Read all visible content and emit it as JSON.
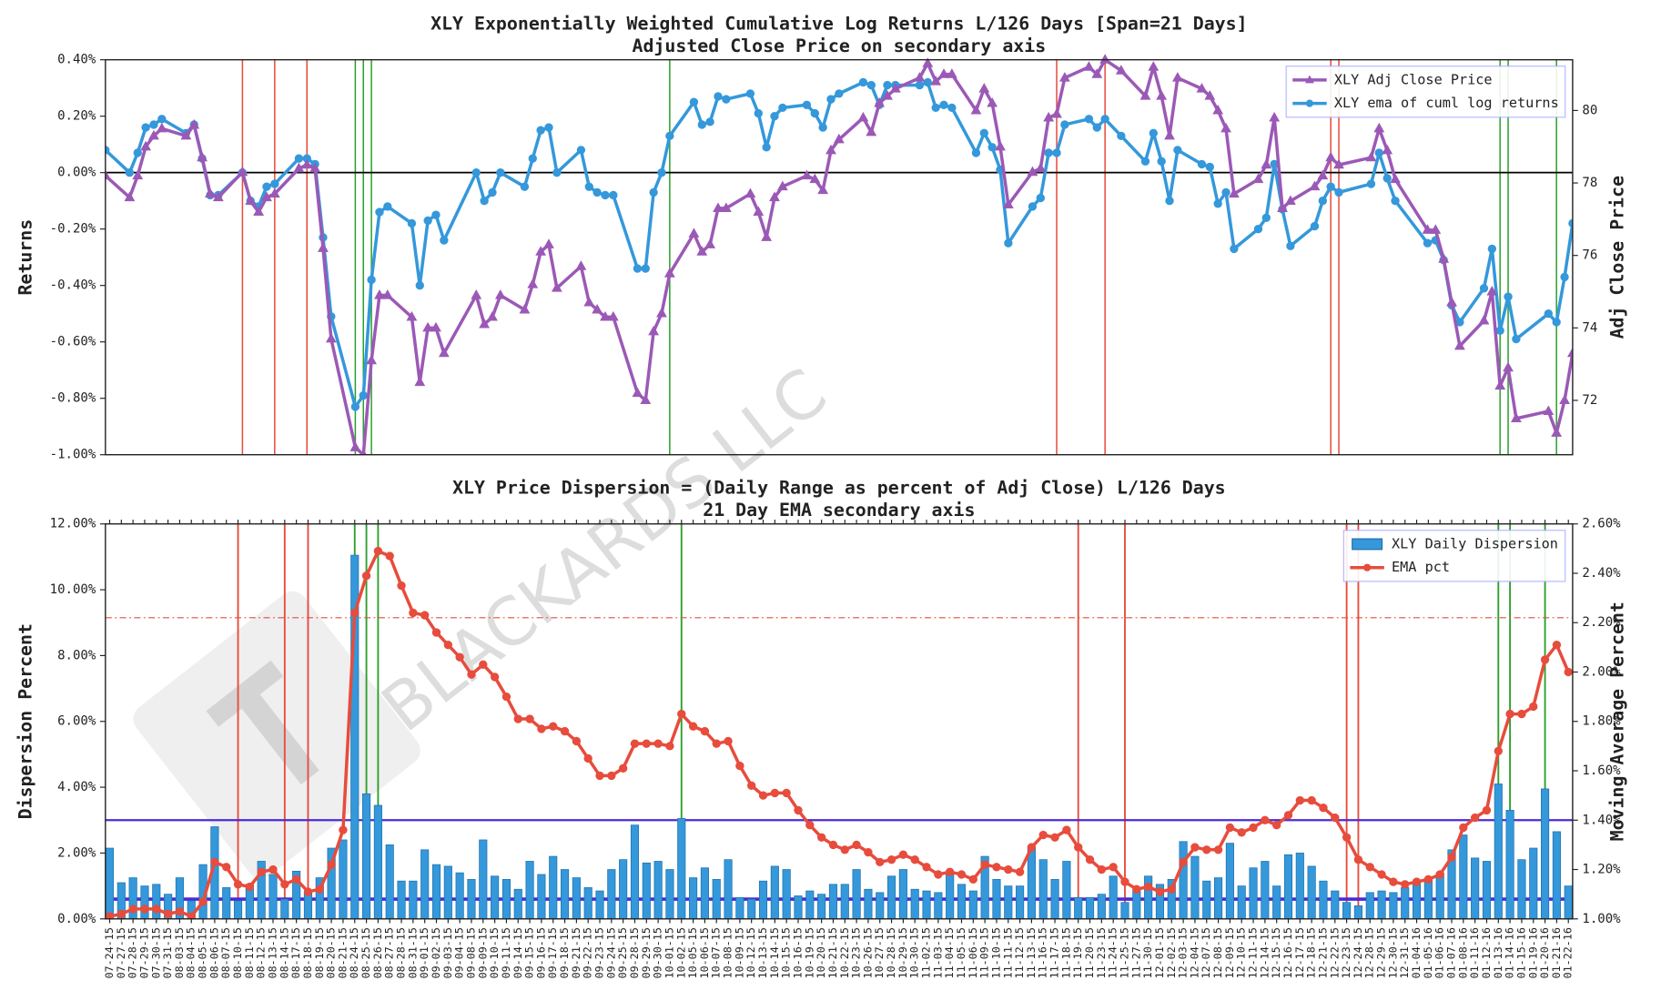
{
  "chart_data": [
    {
      "type": "line",
      "title": "XLY Exponentially Weighted Cumulative Log Returns L/126 Days [Span=21 Days]",
      "subtitle": "Adjusted Close Price on secondary axis",
      "ylabel": "Returns",
      "y2label": "Adj Close Price",
      "ylim": [
        -1.0,
        0.4
      ],
      "yticks": [
        {
          "value": -1.0,
          "label": "-1.00%"
        },
        {
          "value": -0.8,
          "label": "-0.80%"
        },
        {
          "value": -0.6,
          "label": "-0.60%"
        },
        {
          "value": -0.4,
          "label": "-0.40%"
        },
        {
          "value": -0.2,
          "label": "-0.20%"
        },
        {
          "value": 0,
          "label": "0.00%"
        },
        {
          "value": 0.2,
          "label": "0.20%"
        },
        {
          "value": 0.4,
          "label": "0.40%"
        }
      ],
      "y2lim": [
        70.5,
        81.4
      ],
      "y2ticks": [
        72,
        74,
        76,
        78,
        80
      ],
      "legend": "upper right",
      "hlines": [
        {
          "value": 0,
          "axis": "y",
          "color": "#000000",
          "width": 1.5
        }
      ],
      "series": [
        {
          "name": "XLY Adj Close Price",
          "color": "#9b59b6",
          "marker": "triangle",
          "axis": "y2",
          "values": [
            78.2,
            77.6,
            78.2,
            79.0,
            79.3,
            79.5,
            79.3,
            79.6,
            78.7,
            77.7,
            77.6,
            78.3,
            77.5,
            77.2,
            77.6,
            77.7,
            78.4,
            78.5,
            78.4,
            76.2,
            73.7,
            70.7,
            70.5,
            73.1,
            74.9,
            74.9,
            74.3,
            72.5,
            74.0,
            74.0,
            73.3,
            74.9,
            74.1,
            74.3,
            74.9,
            74.5,
            75.2,
            76.1,
            76.3,
            75.1,
            75.7,
            74.7,
            74.5,
            74.3,
            74.3,
            72.2,
            72.0,
            73.9,
            74.4,
            75.5,
            76.6,
            76.1,
            76.3,
            77.3,
            77.3,
            77.7,
            77.2,
            76.5,
            77.6,
            77.9,
            78.2,
            78.1,
            77.8,
            78.9,
            79.2,
            79.8,
            79.4,
            80.2,
            80.4,
            80.6,
            80.9,
            81.3,
            80.8,
            81.0,
            81.0,
            80.0,
            80.6,
            80.2,
            79.0,
            77.4,
            78.3,
            78.4,
            79.8,
            79.9,
            80.9,
            81.2,
            81.0,
            81.4,
            81.1,
            80.4,
            81.2,
            80.4,
            79.3,
            80.9,
            80.6,
            80.4,
            80.0,
            79.5,
            77.7,
            78.1,
            78.5,
            79.8,
            77.3,
            77.5,
            77.9,
            78.2,
            78.7,
            78.5,
            78.7,
            79.5,
            78.9,
            78.1,
            76.7,
            76.7,
            75.9,
            74.7,
            73.5,
            74.2,
            75.0,
            72.4,
            72.9,
            71.5,
            71.7,
            71.1,
            72.0,
            73.3
          ]
        },
        {
          "name": "XLY ema of cuml log returns",
          "color": "#3498db",
          "marker": "circle",
          "axis": "y",
          "values": [
            0.08,
            0.0,
            0.07,
            0.16,
            0.17,
            0.19,
            0.14,
            0.17,
            0.05,
            -0.08,
            -0.08,
            0.0,
            -0.1,
            -0.12,
            -0.05,
            -0.04,
            0.05,
            0.05,
            0.03,
            -0.23,
            -0.51,
            -0.83,
            -0.79,
            -0.38,
            -0.14,
            -0.12,
            -0.18,
            -0.4,
            -0.17,
            -0.15,
            -0.24,
            0.0,
            -0.1,
            -0.07,
            0.0,
            -0.05,
            0.05,
            0.15,
            0.16,
            0.0,
            0.08,
            -0.05,
            -0.07,
            -0.08,
            -0.08,
            -0.34,
            -0.34,
            -0.07,
            0.0,
            0.13,
            0.25,
            0.17,
            0.18,
            0.27,
            0.26,
            0.28,
            0.21,
            0.09,
            0.2,
            0.23,
            0.24,
            0.21,
            0.16,
            0.26,
            0.28,
            0.32,
            0.31,
            0.24,
            0.31,
            0.31,
            0.31,
            0.32,
            0.23,
            0.24,
            0.23,
            0.07,
            0.14,
            0.09,
            0.01,
            -0.25,
            -0.12,
            -0.09,
            0.07,
            0.07,
            0.17,
            0.19,
            0.16,
            0.19,
            0.13,
            0.04,
            0.14,
            0.04,
            -0.1,
            0.08,
            0.03,
            0.02,
            -0.11,
            -0.07,
            -0.27,
            -0.2,
            -0.16,
            0.03,
            -0.13,
            -0.26,
            -0.19,
            -0.1,
            -0.05,
            -0.07,
            -0.04,
            0.07,
            -0.02,
            -0.1,
            -0.25,
            -0.24,
            -0.31,
            -0.47,
            -0.53,
            -0.41,
            -0.27,
            -0.56,
            -0.44,
            -0.59,
            -0.5,
            -0.53,
            -0.37,
            -0.18
          ]
        }
      ]
    },
    {
      "type": "bar",
      "title": "XLY Price Dispersion = (Daily Range as percent of Adj Close) L/126 Days",
      "subtitle": "21 Day EMA secondary axis",
      "ylabel": "Dispersion Percent",
      "y2label": "Moving Average Percent",
      "categories": [
        "07-24-15",
        "07-27-15",
        "07-28-15",
        "07-29-15",
        "07-30-15",
        "07-31-15",
        "08-03-15",
        "08-04-15",
        "08-05-15",
        "08-06-15",
        "08-07-15",
        "08-10-15",
        "08-11-15",
        "08-12-15",
        "08-13-15",
        "08-14-15",
        "08-17-15",
        "08-18-15",
        "08-19-15",
        "08-20-15",
        "08-21-15",
        "08-24-15",
        "08-25-15",
        "08-26-15",
        "08-27-15",
        "08-28-15",
        "08-31-15",
        "09-01-15",
        "09-02-15",
        "09-03-15",
        "09-04-15",
        "09-08-15",
        "09-09-15",
        "09-10-15",
        "09-11-15",
        "09-14-15",
        "09-15-15",
        "09-16-15",
        "09-17-15",
        "09-18-15",
        "09-21-15",
        "09-22-15",
        "09-23-15",
        "09-24-15",
        "09-25-15",
        "09-28-15",
        "09-29-15",
        "09-30-15",
        "10-01-15",
        "10-02-15",
        "10-05-15",
        "10-06-15",
        "10-07-15",
        "10-08-15",
        "10-09-15",
        "10-12-15",
        "10-13-15",
        "10-14-15",
        "10-15-15",
        "10-16-15",
        "10-19-15",
        "10-20-15",
        "10-21-15",
        "10-22-15",
        "10-23-15",
        "10-26-15",
        "10-27-15",
        "10-28-15",
        "10-29-15",
        "10-30-15",
        "11-02-15",
        "11-03-15",
        "11-04-15",
        "11-05-15",
        "11-06-15",
        "11-09-15",
        "11-10-15",
        "11-11-15",
        "11-12-15",
        "11-13-15",
        "11-16-15",
        "11-17-15",
        "11-18-15",
        "11-19-15",
        "11-20-15",
        "11-23-15",
        "11-24-15",
        "11-25-15",
        "11-27-15",
        "11-30-15",
        "12-01-15",
        "12-02-15",
        "12-03-15",
        "12-04-15",
        "12-07-15",
        "12-08-15",
        "12-09-15",
        "12-10-15",
        "12-11-15",
        "12-14-15",
        "12-15-15",
        "12-16-15",
        "12-17-15",
        "12-18-15",
        "12-21-15",
        "12-22-15",
        "12-23-15",
        "12-24-15",
        "12-28-15",
        "12-29-15",
        "12-30-15",
        "12-31-15",
        "01-04-16",
        "01-05-16",
        "01-06-16",
        "01-07-16",
        "01-08-16",
        "01-11-16",
        "01-12-16",
        "01-13-16",
        "01-14-16",
        "01-15-16",
        "01-19-16",
        "01-20-16",
        "01-21-16",
        "01-22-16"
      ],
      "ylim": [
        0,
        12
      ],
      "yticks": [
        {
          "value": 0,
          "label": "0.00%"
        },
        {
          "value": 2,
          "label": "2.00%"
        },
        {
          "value": 4,
          "label": "4.00%"
        },
        {
          "value": 6,
          "label": "6.00%"
        },
        {
          "value": 8,
          "label": "8.00%"
        },
        {
          "value": 10,
          "label": "10.00%"
        },
        {
          "value": 12,
          "label": "12.00%"
        }
      ],
      "y2lim": [
        1.0,
        2.6
      ],
      "y2ticks": [
        {
          "value": 1.0,
          "label": "1.00%"
        },
        {
          "value": 1.2,
          "label": "1.20%"
        },
        {
          "value": 1.4,
          "label": "1.40%"
        },
        {
          "value": 1.6,
          "label": "1.60%"
        },
        {
          "value": 1.8,
          "label": "1.80%"
        },
        {
          "value": 2.0,
          "label": "2.00%"
        },
        {
          "value": 2.2,
          "label": "2.20%"
        },
        {
          "value": 2.4,
          "label": "2.40%"
        },
        {
          "value": 2.6,
          "label": "2.60%"
        }
      ],
      "legend": "upper right",
      "hlines": [
        {
          "value": 3.0,
          "axis": "y",
          "color": "#4b2bd6",
          "width": 2
        },
        {
          "value": 0.6,
          "axis": "y",
          "color": "#4b2bd6",
          "width": 3
        },
        {
          "value": 2.22,
          "axis": "y2",
          "color": "#e74c3c",
          "width": 1,
          "dash": "dashdot"
        }
      ],
      "series": [
        {
          "name": "XLY Daily Dispersion",
          "type": "bar",
          "color": "#3498db",
          "axis": "y",
          "values": [
            2.15,
            1.1,
            1.25,
            1.0,
            1.05,
            0.75,
            1.25,
            0.55,
            1.65,
            2.8,
            0.95,
            0.55,
            1.05,
            1.75,
            1.35,
            0.6,
            1.45,
            0.8,
            1.25,
            2.15,
            2.4,
            11.05,
            3.8,
            3.45,
            2.25,
            1.15,
            1.15,
            2.1,
            1.65,
            1.6,
            1.4,
            1.2,
            2.4,
            1.3,
            1.2,
            0.9,
            1.75,
            1.35,
            1.9,
            1.5,
            1.25,
            0.95,
            0.85,
            1.5,
            1.8,
            2.85,
            1.7,
            1.75,
            1.5,
            3.05,
            1.25,
            1.55,
            1.2,
            1.8,
            0.65,
            0.6,
            1.15,
            1.6,
            1.5,
            0.7,
            0.85,
            0.75,
            1.05,
            1.05,
            1.5,
            0.9,
            0.8,
            1.3,
            1.5,
            0.9,
            0.85,
            0.8,
            1.35,
            1.05,
            0.85,
            1.9,
            1.2,
            1.0,
            1.0,
            2.2,
            1.8,
            1.2,
            1.75,
            0.65,
            0.65,
            0.75,
            1.3,
            0.5,
            0.85,
            1.3,
            1.05,
            1.2,
            2.35,
            1.9,
            1.15,
            1.25,
            2.3,
            1.0,
            1.55,
            1.75,
            1.0,
            1.95,
            2.0,
            1.6,
            1.15,
            0.85,
            0.5,
            0.4,
            0.8,
            0.85,
            0.8,
            0.95,
            1.15,
            1.2,
            1.4,
            2.1,
            2.55,
            1.85,
            1.75,
            4.1,
            3.3,
            1.8,
            2.15,
            3.95,
            2.65,
            1.0
          ]
        },
        {
          "name": "EMA pct",
          "type": "line",
          "color": "#e74c3c",
          "marker": "circle",
          "axis": "y2",
          "values": [
            1.01,
            1.02,
            1.04,
            1.04,
            1.04,
            1.02,
            1.03,
            1.01,
            1.07,
            1.23,
            1.21,
            1.14,
            1.13,
            1.19,
            1.2,
            1.14,
            1.16,
            1.11,
            1.12,
            1.22,
            1.36,
            2.24,
            2.39,
            2.49,
            2.47,
            2.35,
            2.24,
            2.23,
            2.16,
            2.11,
            2.06,
            1.99,
            2.03,
            1.98,
            1.9,
            1.81,
            1.81,
            1.77,
            1.78,
            1.76,
            1.72,
            1.65,
            1.58,
            1.58,
            1.61,
            1.71,
            1.71,
            1.71,
            1.7,
            1.83,
            1.78,
            1.76,
            1.71,
            1.72,
            1.62,
            1.54,
            1.5,
            1.51,
            1.51,
            1.44,
            1.38,
            1.33,
            1.3,
            1.28,
            1.3,
            1.27,
            1.23,
            1.24,
            1.26,
            1.24,
            1.21,
            1.18,
            1.19,
            1.18,
            1.16,
            1.22,
            1.21,
            1.2,
            1.19,
            1.29,
            1.34,
            1.33,
            1.36,
            1.29,
            1.24,
            1.2,
            1.21,
            1.15,
            1.12,
            1.13,
            1.11,
            1.12,
            1.23,
            1.29,
            1.28,
            1.28,
            1.37,
            1.35,
            1.37,
            1.4,
            1.38,
            1.42,
            1.48,
            1.48,
            1.45,
            1.41,
            1.33,
            1.24,
            1.21,
            1.18,
            1.15,
            1.14,
            1.15,
            1.16,
            1.18,
            1.25,
            1.37,
            1.41,
            1.44,
            1.68,
            1.83,
            1.83,
            1.86,
            2.05,
            2.11,
            2.0
          ]
        }
      ]
    }
  ],
  "signals": [
    {
      "color": "#e74c3c",
      "dates": [
        "08-10-15",
        "08-14-15",
        "08-18-15",
        "11-19-15",
        "11-25-15",
        "12-23-15",
        "12-24-15"
      ]
    },
    {
      "color": "#2ca02c",
      "dates": [
        "08-24-15",
        "08-25-15",
        "08-26-15",
        "10-02-15",
        "01-13-16",
        "01-14-16",
        "01-20-16"
      ]
    }
  ],
  "watermark": "BLACKARDS LLC"
}
